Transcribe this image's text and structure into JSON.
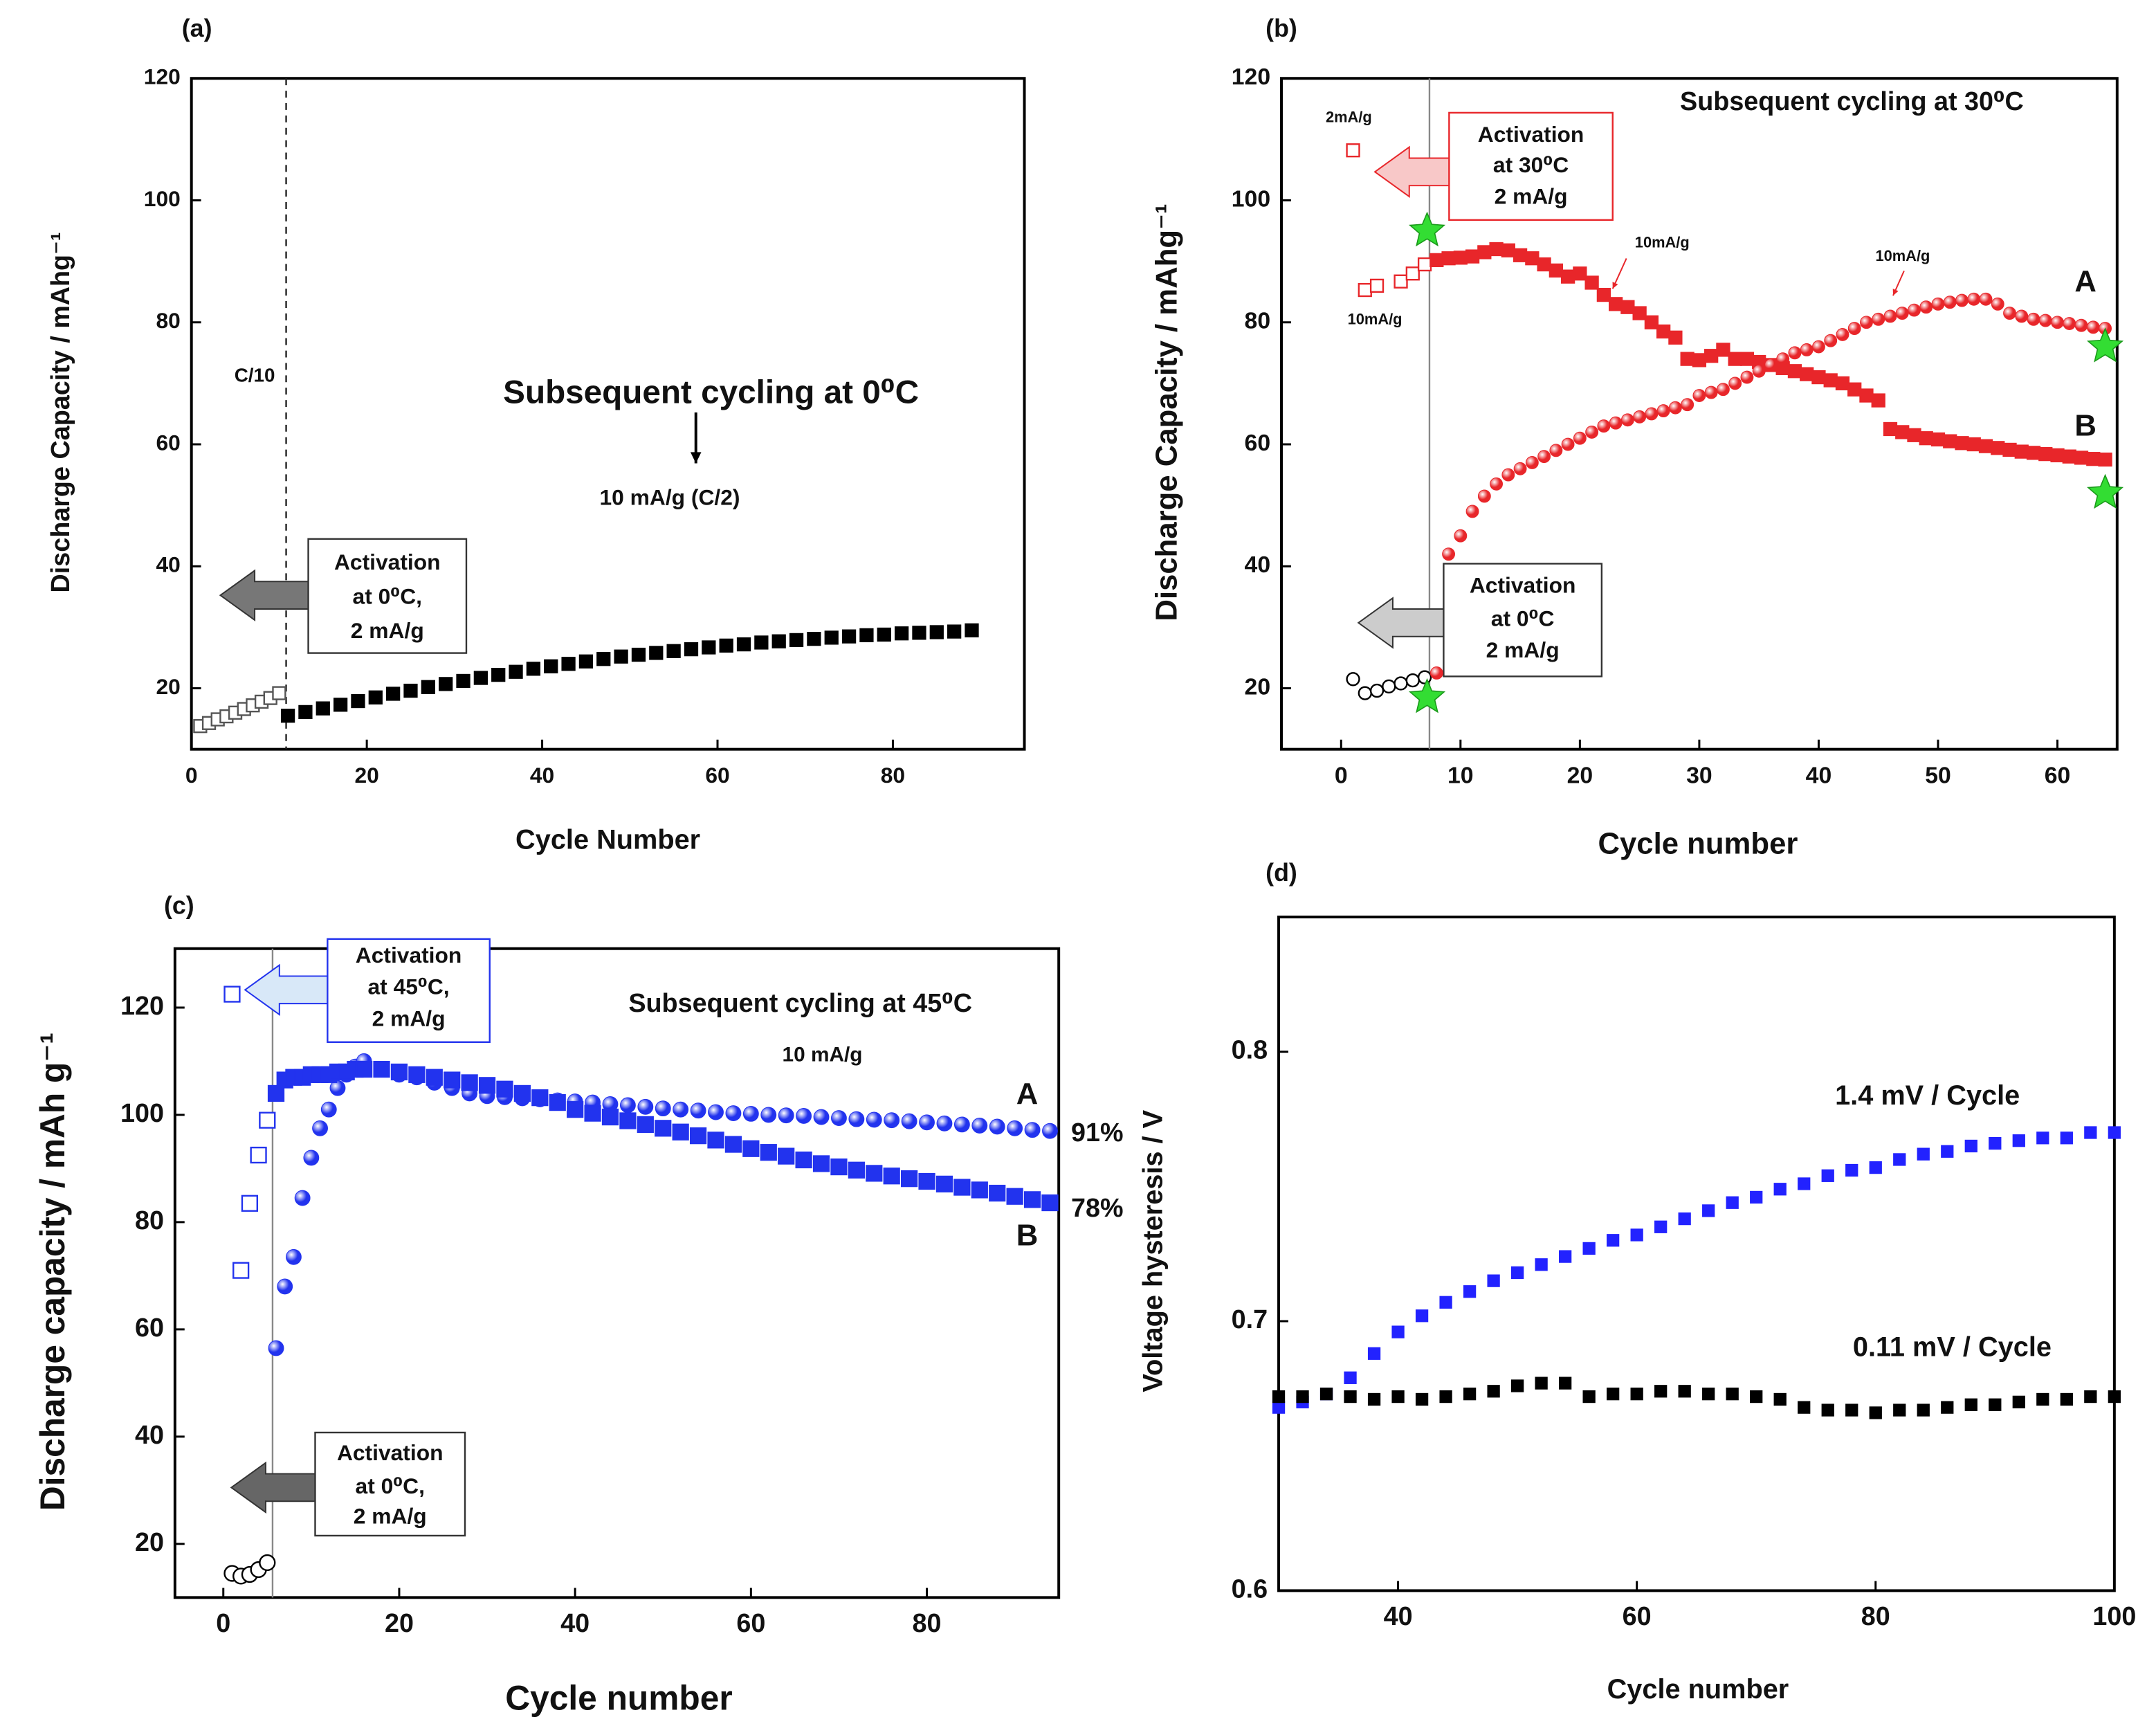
{
  "chart_data": [
    {
      "type": "scatter",
      "panel_label": "(a)",
      "x_label": "Cycle Number",
      "y_label": "Discharge Capacity / mAhg⁻¹",
      "xlim": [
        0,
        95
      ],
      "ylim": [
        10,
        120
      ],
      "xticks": [
        0,
        20,
        40,
        60,
        80
      ],
      "yticks": [
        20,
        40,
        60,
        80,
        100,
        120
      ],
      "reference_line": 10.8,
      "reference_line_dashed": true,
      "annotations": [
        "Subsequent cycling at 0⁰C",
        "10 mA/g (C/2)",
        "C/10"
      ],
      "boxes": [
        [
          "Activation",
          "at 0⁰C,",
          "2 mA/g"
        ]
      ],
      "series": [
        {
          "marker": "square-open",
          "color": "#555555",
          "x": [
            1,
            2,
            3,
            4,
            5,
            6,
            7,
            8,
            9,
            10
          ],
          "values": [
            13.8,
            14.3,
            14.9,
            15.4,
            16.0,
            16.6,
            17.2,
            17.8,
            18.4,
            19.2
          ]
        },
        {
          "marker": "square",
          "color": "#000000",
          "x": [
            11,
            13,
            15,
            17,
            19,
            21,
            23,
            25,
            27,
            29,
            31,
            33,
            35,
            37,
            39,
            41,
            43,
            45,
            47,
            49,
            51,
            53,
            55,
            57,
            59,
            61,
            63,
            65,
            67,
            69,
            71,
            73,
            75,
            77,
            79,
            81,
            83,
            85,
            87,
            89
          ],
          "values": [
            15.5,
            16.1,
            16.7,
            17.3,
            17.9,
            18.5,
            19.1,
            19.6,
            20.2,
            20.7,
            21.2,
            21.7,
            22.2,
            22.7,
            23.2,
            23.6,
            24.0,
            24.4,
            24.8,
            25.2,
            25.5,
            25.8,
            26.1,
            26.4,
            26.7,
            27.0,
            27.2,
            27.5,
            27.7,
            27.9,
            28.1,
            28.3,
            28.5,
            28.7,
            28.8,
            29.0,
            29.1,
            29.2,
            29.3,
            29.5
          ]
        }
      ]
    },
    {
      "type": "scatter",
      "panel_label": "(b)",
      "x_label": "Cycle number",
      "y_label": "Discharge Capacity / mAhg⁻¹",
      "xlim": [
        -5,
        65
      ],
      "ylim": [
        10,
        120
      ],
      "xticks": [
        0,
        10,
        20,
        30,
        40,
        50,
        60
      ],
      "yticks": [
        20,
        40,
        60,
        80,
        100,
        120
      ],
      "reference_line": 7.4,
      "reference_line_dashed": false,
      "annotations": [
        "Subsequent cycling at 30⁰C",
        "2mA/g",
        "10mA/g",
        "10mA/g",
        "10mA/g"
      ],
      "boxes": [
        [
          "Activation",
          "at 30⁰C",
          "2 mA/g"
        ],
        [
          "Activation",
          "at 0⁰C",
          "2 mA/g"
        ]
      ],
      "series": [
        {
          "marker": "circle-open",
          "color": "#000000",
          "x": [
            1,
            2,
            3,
            4,
            5,
            6,
            7
          ],
          "values": [
            21.5,
            19.2,
            19.6,
            20.3,
            20.8,
            21.3,
            21.8
          ]
        },
        {
          "marker": "square-open",
          "color": "#e8262a",
          "x": [
            1,
            2,
            3,
            5,
            6,
            7
          ],
          "values": [
            108.2,
            85.3,
            86,
            86.7,
            88,
            89.5
          ]
        },
        {
          "name": "B",
          "marker": "square",
          "color": "#e8262a",
          "x": [
            8,
            9,
            10,
            11,
            12,
            13,
            14,
            15,
            16,
            17,
            18,
            19,
            20,
            21,
            22,
            23,
            24,
            25,
            26,
            27,
            28,
            29,
            30,
            31,
            32,
            33,
            34,
            35,
            36,
            37,
            38,
            39,
            40,
            41,
            42,
            43,
            44,
            45,
            46,
            47,
            48,
            49,
            50,
            51,
            52,
            53,
            54,
            55,
            56,
            57,
            58,
            59,
            60,
            61,
            62,
            63,
            64
          ],
          "values": [
            90.2,
            90.5,
            90.6,
            90.8,
            91.5,
            92,
            91.8,
            91,
            90.5,
            89.5,
            88.5,
            87.5,
            88,
            86.5,
            84.5,
            83,
            82.5,
            81.5,
            80,
            78.5,
            77.5,
            74,
            73.8,
            74.5,
            75.5,
            74,
            74,
            73.5,
            73,
            72.5,
            72,
            71.5,
            71,
            70.5,
            70,
            69,
            68,
            67.2,
            62.5,
            62,
            61.5,
            61,
            60.8,
            60.5,
            60.2,
            60,
            59.7,
            59.4,
            59.1,
            58.8,
            58.6,
            58.4,
            58.2,
            58,
            57.8,
            57.6,
            57.5
          ]
        },
        {
          "name": "A",
          "marker": "sphere",
          "color": "#e8262a",
          "x": [
            8,
            9,
            10,
            11,
            12,
            13,
            14,
            15,
            16,
            17,
            18,
            19,
            20,
            21,
            22,
            23,
            24,
            25,
            26,
            27,
            28,
            29,
            30,
            31,
            32,
            33,
            34,
            35,
            36,
            37,
            38,
            39,
            40,
            41,
            42,
            43,
            44,
            45,
            46,
            47,
            48,
            49,
            50,
            51,
            52,
            53,
            54,
            55,
            56,
            57,
            58,
            59,
            60,
            61,
            62,
            63,
            64
          ],
          "values": [
            22.5,
            42,
            45,
            49,
            51.5,
            53.5,
            55,
            56,
            57,
            58,
            59,
            60,
            61,
            62,
            63,
            63.5,
            64,
            64.5,
            65,
            65.5,
            66,
            66.5,
            68,
            68.5,
            69,
            70,
            71,
            72,
            73,
            74,
            75,
            75.5,
            76,
            77,
            78,
            79,
            80,
            80.5,
            81,
            81.5,
            82,
            82.5,
            83,
            83.3,
            83.6,
            83.8,
            83.8,
            83,
            81.5,
            81,
            80.5,
            80.3,
            80,
            79.8,
            79.5,
            79.2,
            79
          ]
        },
        {
          "marker": "star",
          "color": "#33dd33",
          "x": [
            7.2,
            7.2,
            64,
            64
          ],
          "values": [
            95,
            18.5,
            76,
            52
          ]
        }
      ]
    },
    {
      "type": "scatter",
      "panel_label": "(c)",
      "x_label": "Cycle number",
      "y_label": "Discharge capacity / mAh g⁻¹",
      "xlim": [
        -5.5,
        95
      ],
      "ylim": [
        10,
        131
      ],
      "xticks": [
        0,
        20,
        40,
        60,
        80
      ],
      "yticks": [
        20,
        40,
        60,
        80,
        100,
        120
      ],
      "reference_line": 5.6,
      "reference_line_dashed": false,
      "annotations": [
        "Subsequent cycling at 45⁰C",
        "10 mA/g",
        "91%",
        "78%"
      ],
      "boxes": [
        [
          "Activation",
          "at 45⁰C,",
          "2 mA/g"
        ],
        [
          "Activation",
          "at 0⁰C,",
          "2 mA/g"
        ]
      ],
      "series": [
        {
          "marker": "circle-open",
          "color": "#000000",
          "x": [
            1,
            2,
            3,
            4,
            5
          ],
          "values": [
            14.5,
            14,
            14.3,
            15.2,
            16.5
          ]
        },
        {
          "marker": "square-open",
          "color": "#2233ee",
          "x": [
            1,
            2,
            3,
            4,
            5
          ],
          "values": [
            122.5,
            71,
            83.5,
            92.5,
            99
          ]
        },
        {
          "name": "A",
          "marker": "sphere",
          "color": "#2233ee",
          "x": [
            6,
            7,
            8,
            9,
            10,
            11,
            12,
            13,
            14,
            15,
            16,
            18,
            20,
            22,
            24,
            26,
            28,
            30,
            32,
            34,
            36,
            38,
            40,
            42,
            44,
            46,
            48,
            50,
            52,
            54,
            56,
            58,
            60,
            62,
            64,
            66,
            68,
            70,
            72,
            74,
            76,
            78,
            80,
            82,
            84,
            86,
            88,
            90,
            92,
            94
          ],
          "values": [
            56.5,
            68,
            73.5,
            84.5,
            92,
            97.5,
            101,
            105,
            107.5,
            109,
            110,
            108.5,
            107.5,
            107,
            106,
            105,
            104,
            103.5,
            103.3,
            103.1,
            102.9,
            102.7,
            102.5,
            102.3,
            102,
            101.8,
            101.5,
            101.2,
            101,
            100.8,
            100.5,
            100.3,
            100.2,
            100,
            99.9,
            99.8,
            99.6,
            99.4,
            99.2,
            99.1,
            99,
            98.8,
            98.6,
            98.4,
            98.2,
            98,
            97.8,
            97.5,
            97.2,
            97
          ]
        },
        {
          "name": "B",
          "marker": "square",
          "color": "#2233ee",
          "x": [
            6,
            7,
            8,
            9,
            10,
            11,
            12,
            13,
            14,
            15,
            16,
            18,
            20,
            22,
            24,
            26,
            28,
            30,
            32,
            34,
            36,
            38,
            40,
            42,
            44,
            46,
            48,
            50,
            52,
            54,
            56,
            58,
            60,
            62,
            64,
            66,
            68,
            70,
            72,
            74,
            76,
            78,
            80,
            82,
            84,
            86,
            88,
            90,
            92,
            94
          ],
          "values": [
            104,
            106.5,
            107,
            107,
            107.5,
            107.5,
            107.5,
            108,
            108,
            108.5,
            108.5,
            108.5,
            108,
            107.5,
            107,
            106.5,
            106,
            105.5,
            104.8,
            104,
            103.2,
            102.3,
            101,
            100.3,
            99.6,
            98.9,
            98.2,
            97.5,
            96.8,
            96.1,
            95.3,
            94.5,
            93.7,
            93,
            92.3,
            91.6,
            90.9,
            90.3,
            89.7,
            89.1,
            88.6,
            88.1,
            87.6,
            87.1,
            86.5,
            86,
            85.4,
            84.8,
            84.2,
            83.6
          ]
        }
      ]
    },
    {
      "type": "scatter",
      "panel_label": "(d)",
      "x_label": "Cycle number",
      "y_label": "Voltage hysteresis / V",
      "xlim": [
        30,
        100
      ],
      "ylim": [
        0.6,
        0.85
      ],
      "xticks": [
        40,
        60,
        80,
        100
      ],
      "yticks": [
        0.6,
        0.7,
        0.8
      ],
      "annotations": [
        "1.4 mV / Cycle",
        "0.11 mV / Cycle"
      ],
      "series": [
        {
          "marker": "square",
          "color": "#2222ff",
          "x": [
            30,
            32,
            34,
            36,
            38,
            40,
            42,
            44,
            46,
            48,
            50,
            52,
            54,
            56,
            58,
            60,
            62,
            64,
            66,
            68,
            70,
            72,
            74,
            76,
            78,
            80,
            82,
            84,
            86,
            88,
            90,
            92,
            94,
            96,
            98,
            100
          ],
          "values": [
            0.668,
            0.67,
            0.673,
            0.679,
            0.688,
            0.696,
            0.702,
            0.707,
            0.711,
            0.715,
            0.718,
            0.721,
            0.724,
            0.727,
            0.73,
            0.732,
            0.735,
            0.738,
            0.741,
            0.744,
            0.746,
            0.749,
            0.751,
            0.754,
            0.756,
            0.757,
            0.76,
            0.762,
            0.763,
            0.765,
            0.766,
            0.767,
            0.768,
            0.768,
            0.77,
            0.77
          ]
        },
        {
          "marker": "square",
          "color": "#000000",
          "x": [
            30,
            32,
            34,
            36,
            38,
            40,
            42,
            44,
            46,
            48,
            50,
            52,
            54,
            56,
            58,
            60,
            62,
            64,
            66,
            68,
            70,
            72,
            74,
            76,
            78,
            80,
            82,
            84,
            86,
            88,
            90,
            92,
            94,
            96,
            98,
            100
          ],
          "values": [
            0.672,
            0.672,
            0.673,
            0.672,
            0.671,
            0.672,
            0.671,
            0.672,
            0.673,
            0.674,
            0.676,
            0.677,
            0.677,
            0.672,
            0.673,
            0.673,
            0.674,
            0.674,
            0.673,
            0.673,
            0.672,
            0.671,
            0.668,
            0.667,
            0.667,
            0.666,
            0.667,
            0.667,
            0.668,
            0.669,
            0.669,
            0.67,
            0.671,
            0.671,
            0.672,
            0.672
          ]
        }
      ]
    }
  ]
}
